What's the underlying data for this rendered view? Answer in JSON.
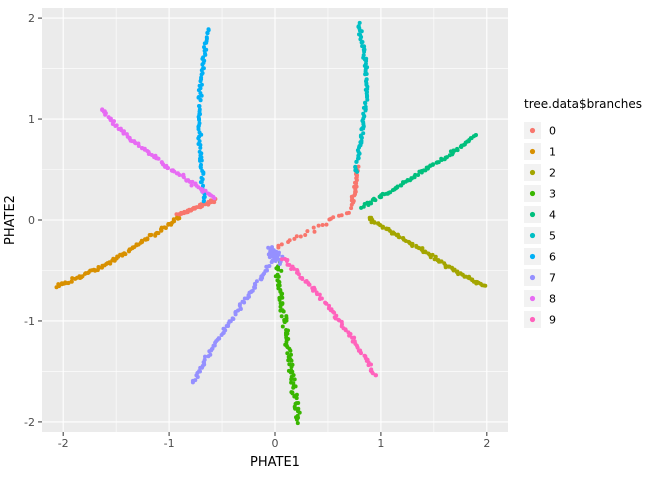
{
  "colors": {
    "figure_bg": "#FFFFFF",
    "panel_bg": "#EBEBEB",
    "grid": "#FFFFFF",
    "tick_mark": "#333333",
    "tick_text": "#4D4D4D",
    "legend_key_bg": "#F2F2F2"
  },
  "chart_data": {
    "type": "scatter",
    "title": "",
    "xlabel": "PHATE1",
    "ylabel": "PHATE2",
    "legend_title": "tree.data$branches",
    "xlim": [
      -2.2,
      2.2
    ],
    "ylim": [
      -2.1,
      2.1
    ],
    "x_ticks": [
      -2,
      -1,
      0,
      1,
      2
    ],
    "x_tick_labels": [
      "-2",
      "-1",
      "0",
      "1",
      "2"
    ],
    "y_ticks": [
      -2,
      -1,
      0,
      1,
      2
    ],
    "y_tick_labels": [
      "-2",
      "-1",
      "0",
      "1",
      "2"
    ],
    "grid": true,
    "legend_position": "right",
    "point_radius_px": 2.0,
    "series": [
      {
        "name": "0",
        "color": "#F8766D",
        "jitter": 0.018,
        "paths": [
          [
            [
              -0.92,
              0.04
            ],
            [
              -0.75,
              0.12
            ],
            [
              -0.57,
              0.19
            ]
          ],
          [
            [
              0.02,
              -0.27
            ],
            [
              0.35,
              -0.1
            ],
            [
              0.7,
              0.08
            ]
          ],
          [
            [
              0.73,
              0.13
            ],
            [
              0.76,
              0.35
            ],
            [
              0.78,
              0.53
            ]
          ]
        ],
        "counts": [
          45,
          22,
          28
        ],
        "jitters": [
          0.018,
          0.022,
          0.016
        ]
      },
      {
        "name": "1",
        "color": "#D89000",
        "jitter": 0.018,
        "paths": [
          [
            [
              -2.06,
              -0.66
            ],
            [
              -1.8,
              -0.55
            ],
            [
              -1.5,
              -0.38
            ],
            [
              -1.2,
              -0.18
            ],
            [
              -1.0,
              -0.05
            ],
            [
              -0.9,
              0.03
            ]
          ]
        ],
        "counts": [
          95
        ]
      },
      {
        "name": "2",
        "color": "#A3A500",
        "jitter": 0.018,
        "paths": [
          [
            [
              0.88,
              0.02
            ],
            [
              1.1,
              -0.12
            ],
            [
              1.35,
              -0.27
            ],
            [
              1.65,
              -0.47
            ],
            [
              1.98,
              -0.66
            ]
          ]
        ],
        "counts": [
          90
        ]
      },
      {
        "name": "3",
        "color": "#39B600",
        "jitter": 0.028,
        "paths": [
          [
            [
              0.02,
              -0.45
            ],
            [
              0.07,
              -0.85
            ],
            [
              0.12,
              -1.25
            ],
            [
              0.17,
              -1.6
            ],
            [
              0.21,
              -1.85
            ],
            [
              0.22,
              -2.0
            ]
          ]
        ],
        "counts": [
          100
        ]
      },
      {
        "name": "4",
        "color": "#00BF7D",
        "jitter": 0.018,
        "paths": [
          [
            [
              0.83,
              0.13
            ],
            [
              1.05,
              0.26
            ],
            [
              1.3,
              0.42
            ],
            [
              1.55,
              0.58
            ],
            [
              1.78,
              0.74
            ],
            [
              1.9,
              0.84
            ]
          ]
        ],
        "counts": [
          85
        ]
      },
      {
        "name": "5",
        "color": "#00BFC4",
        "jitter": 0.018,
        "paths": [
          [
            [
              0.76,
              0.48
            ],
            [
              0.81,
              0.8
            ],
            [
              0.86,
              1.2
            ],
            [
              0.86,
              1.55
            ],
            [
              0.81,
              1.82
            ],
            [
              0.79,
              1.95
            ]
          ]
        ],
        "counts": [
          85
        ]
      },
      {
        "name": "6",
        "color": "#00B0F6",
        "jitter": 0.016,
        "paths": [
          [
            [
              -0.67,
              0.18
            ],
            [
              -0.7,
              0.55
            ],
            [
              -0.72,
              1.0
            ],
            [
              -0.7,
              1.4
            ],
            [
              -0.66,
              1.7
            ],
            [
              -0.63,
              1.9
            ]
          ]
        ],
        "counts": [
          85
        ]
      },
      {
        "name": "7",
        "color": "#9590FF",
        "jitter": 0.018,
        "paths": [
          [
            [
              -0.02,
              -0.4
            ],
            [
              -0.2,
              -0.68
            ],
            [
              -0.42,
              -1.0
            ],
            [
              -0.62,
              -1.32
            ],
            [
              -0.78,
              -1.62
            ]
          ],
          [
            [
              -0.05,
              -0.28
            ],
            [
              0.02,
              -0.4
            ]
          ]
        ],
        "counts": [
          80,
          40
        ],
        "jitters": [
          0.018,
          0.05
        ]
      },
      {
        "name": "8",
        "color": "#E76BF3",
        "jitter": 0.018,
        "paths": [
          [
            [
              -0.57,
              0.22
            ],
            [
              -0.8,
              0.38
            ],
            [
              -1.05,
              0.55
            ],
            [
              -1.3,
              0.75
            ],
            [
              -1.5,
              0.93
            ],
            [
              -1.64,
              1.1
            ]
          ]
        ],
        "counts": [
          85
        ]
      },
      {
        "name": "9",
        "color": "#FF62BC",
        "jitter": 0.02,
        "paths": [
          [
            [
              0.08,
              -0.38
            ],
            [
              0.28,
              -0.58
            ],
            [
              0.5,
              -0.85
            ],
            [
              0.72,
              -1.15
            ],
            [
              0.88,
              -1.42
            ],
            [
              0.95,
              -1.55
            ]
          ]
        ],
        "counts": [
          80
        ]
      }
    ],
    "legend_items": [
      {
        "label": "0",
        "color": "#F8766D"
      },
      {
        "label": "1",
        "color": "#D89000"
      },
      {
        "label": "2",
        "color": "#A3A500"
      },
      {
        "label": "3",
        "color": "#39B600"
      },
      {
        "label": "4",
        "color": "#00BF7D"
      },
      {
        "label": "5",
        "color": "#00BFC4"
      },
      {
        "label": "6",
        "color": "#00B0F6"
      },
      {
        "label": "7",
        "color": "#9590FF"
      },
      {
        "label": "8",
        "color": "#E76BF3"
      },
      {
        "label": "9",
        "color": "#FF62BC"
      }
    ]
  }
}
